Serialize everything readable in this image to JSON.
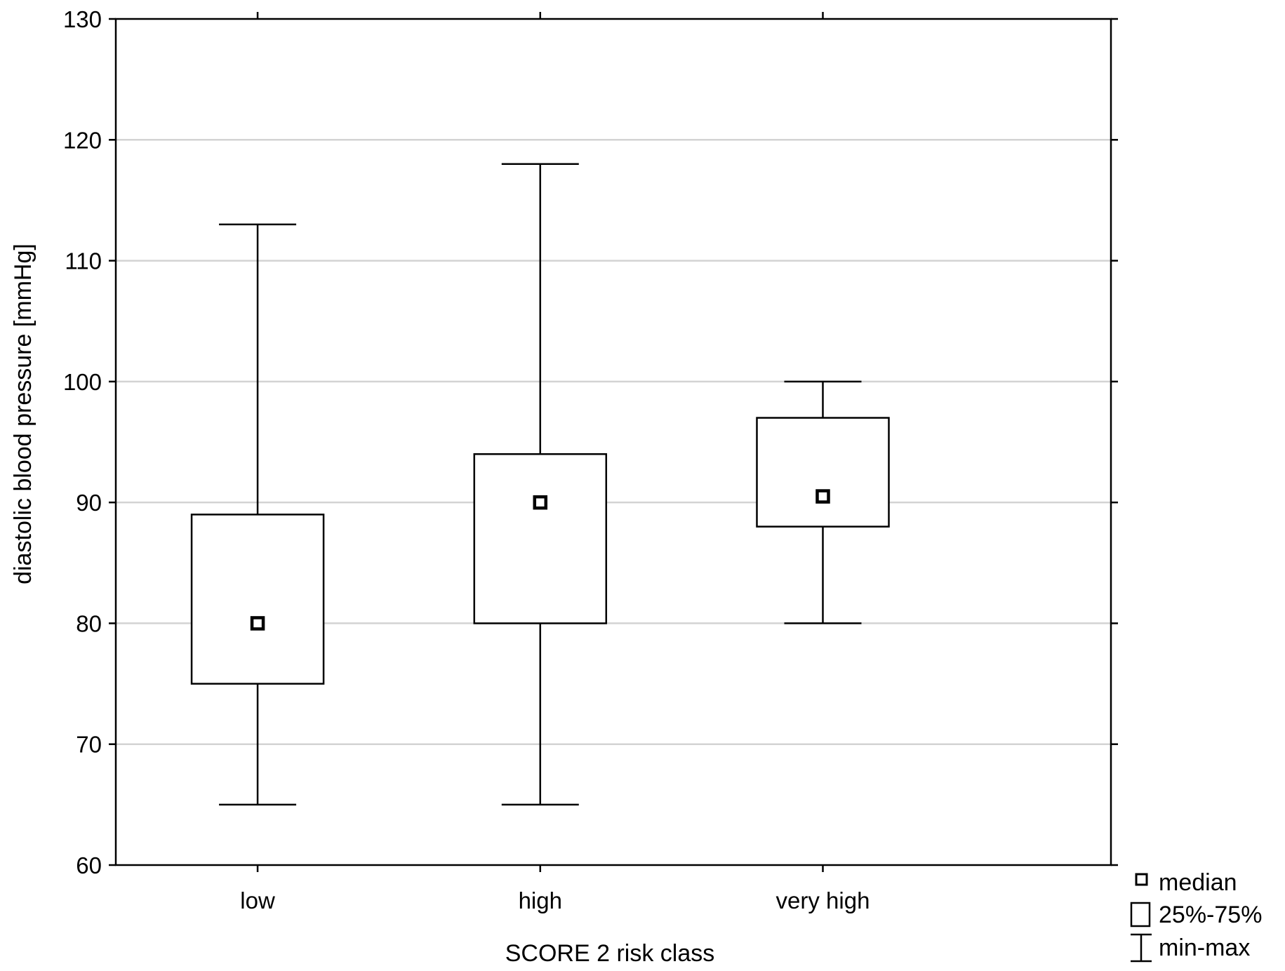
{
  "chart_data": {
    "type": "boxplot",
    "title": "",
    "xlabel": "SCORE 2 risk class",
    "ylabel": "diastolic blood pressure [mmHg]",
    "ylim": [
      60,
      130
    ],
    "yticks": [
      "60",
      "70",
      "80",
      "90",
      "100",
      "110",
      "120",
      "130"
    ],
    "categories": [
      "low",
      "high",
      "very high"
    ],
    "series": [
      {
        "category": "low",
        "min": 65,
        "q1": 75,
        "median": 80,
        "q3": 89,
        "max": 113
      },
      {
        "category": "high",
        "min": 65,
        "q1": 80,
        "median": 90,
        "q3": 94,
        "max": 118
      },
      {
        "category": "very high",
        "min": 80,
        "q1": 88,
        "median": 90.5,
        "q3": 97,
        "max": 100
      }
    ],
    "grid": true,
    "legend_position": "bottom-right",
    "legend": [
      {
        "symbol": "median-marker",
        "label": "median"
      },
      {
        "symbol": "box",
        "label": "25%-75%"
      },
      {
        "symbol": "whisker",
        "label": "min-max"
      }
    ],
    "colors": {
      "ink": "#000000",
      "grid": "#d3d3d3",
      "box_fill": "#ffffff"
    }
  }
}
